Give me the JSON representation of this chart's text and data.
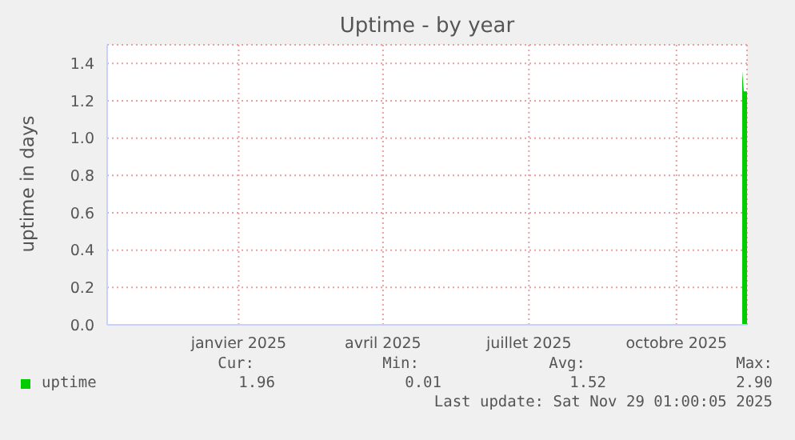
{
  "chart_data": {
    "type": "area",
    "title": "Uptime - by year",
    "ylabel": "uptime in days",
    "x": [
      "2025-11-26",
      "2025-11-27",
      "2025-11-29"
    ],
    "series": [
      {
        "name": "uptime",
        "color": "#00cc00",
        "values": [
          1.36,
          1.25,
          1.25
        ]
      }
    ],
    "xlim": [
      "2024-10-26",
      "2025-11-29"
    ],
    "xticks": [
      {
        "value": "2025-01-16",
        "label": "janvier 2025"
      },
      {
        "value": "2025-04-16",
        "label": "avril 2025"
      },
      {
        "value": "2025-07-16",
        "label": "juillet 2025"
      },
      {
        "value": "2025-10-16",
        "label": "octobre 2025"
      }
    ],
    "ylim": [
      0,
      1.5
    ],
    "yticks": [
      {
        "value": 0,
        "label": "0.0"
      },
      {
        "value": 0.2,
        "label": "0.2"
      },
      {
        "value": 0.4,
        "label": "0.4"
      },
      {
        "value": 0.6,
        "label": "0.6"
      },
      {
        "value": 0.8,
        "label": "0.8"
      },
      {
        "value": 1,
        "label": "1.0"
      },
      {
        "value": 1.2,
        "label": "1.2"
      },
      {
        "value": 1.4,
        "label": "1.4"
      }
    ],
    "grid": true,
    "legend": "bottom",
    "marker": "none",
    "annotations": [
      "Cur:",
      "Min:",
      "Avg:",
      "Max:",
      "1.96",
      "0.01",
      "1.52",
      "2.90",
      "Last update: Sat Nov 29 01:00:05 2025"
    ]
  }
}
